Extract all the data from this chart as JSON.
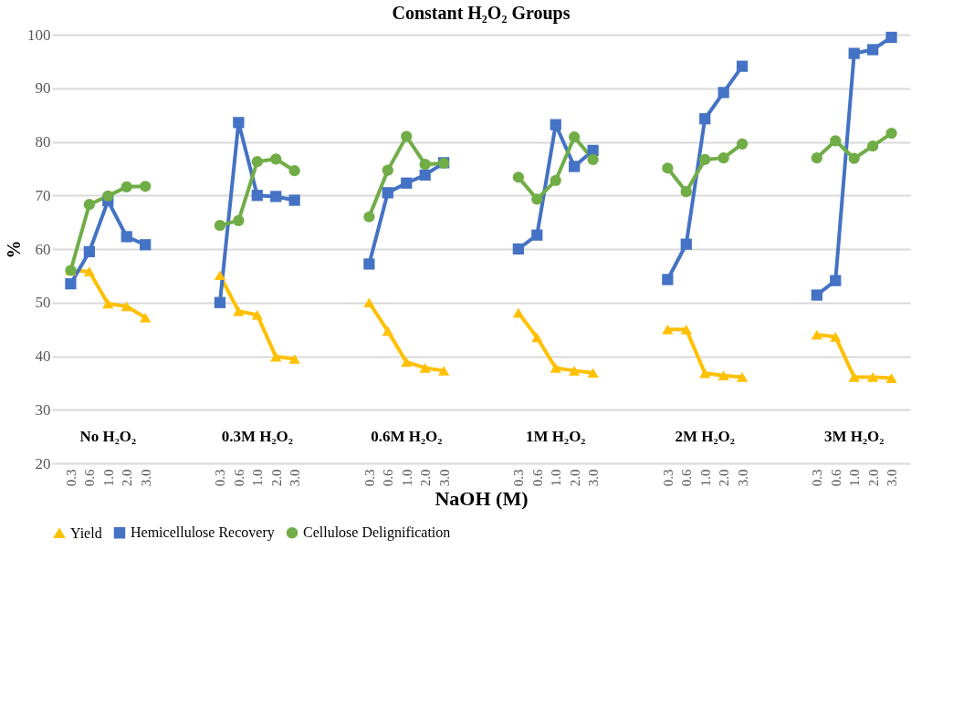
{
  "chart_data": {
    "type": "line",
    "title": "Constant H₂O₂ Groups",
    "xlabel": "NaOH (M)",
    "ylabel": "%",
    "categories": [
      "0.3",
      "0.6",
      "1.0",
      "2.0",
      "3.0",
      null,
      null,
      null,
      "0.3",
      "0.6",
      "1.0",
      "2.0",
      "3.0",
      null,
      null,
      null,
      "0.3",
      "0.6",
      "1.0",
      "2.0",
      "3.0",
      null,
      null,
      null,
      "0.3",
      "0.6",
      "1.0",
      "2.0",
      "3.0",
      null,
      null,
      null,
      "0.3",
      "0.6",
      "1.0",
      "2.0",
      "3.0",
      null,
      null,
      null,
      "0.3",
      "0.6",
      "1.0",
      "2.0",
      "3.0"
    ],
    "series": [
      {
        "name": "Yield",
        "color": "#ffc000",
        "marker": "triangle",
        "values": [
          56,
          55.8,
          49.8,
          49.3,
          47.2,
          null,
          null,
          null,
          55.1,
          48.4,
          47.7,
          39.9,
          39.5,
          null,
          null,
          null,
          50,
          44.7,
          38.9,
          37.8,
          37.3,
          null,
          null,
          null,
          48.1,
          43.5,
          37.8,
          37.3,
          36.9,
          null,
          null,
          null,
          45,
          45,
          36.8,
          36.4,
          36.1,
          null,
          null,
          null,
          44,
          43.6,
          36.1,
          36.1,
          35.9
        ]
      },
      {
        "name": "Hemicellulose Recovery",
        "color": "#4472c4",
        "marker": "square",
        "values": [
          53.5,
          59.5,
          69,
          62.3,
          60.8,
          null,
          null,
          null,
          50,
          83.6,
          70,
          69.8,
          69.1,
          null,
          null,
          null,
          57.2,
          70.5,
          72.3,
          73.8,
          76.1,
          null,
          null,
          null,
          60,
          62.6,
          83.2,
          75.4,
          78.4,
          null,
          null,
          null,
          54.3,
          60.9,
          84.3,
          89.2,
          94.1,
          null,
          null,
          null,
          51.4,
          54.1,
          96.5,
          97.2,
          99.5
        ]
      },
      {
        "name": "Cellulose Delignification",
        "color": "#70ad47",
        "marker": "circle",
        "values": [
          56,
          68.3,
          69.9,
          71.6,
          71.7,
          null,
          null,
          null,
          64.4,
          65.3,
          76.3,
          76.8,
          74.6,
          null,
          null,
          null,
          66,
          74.7,
          81,
          75.8,
          76,
          null,
          null,
          null,
          73.4,
          69.3,
          72.8,
          80.9,
          76.7,
          null,
          null,
          null,
          75.1,
          70.7,
          76.7,
          77,
          79.6,
          null,
          null,
          null,
          77,
          80.2,
          76.9,
          79.2,
          81.6
        ]
      }
    ],
    "annotations": [
      "No H₂O₂",
      "0.3M H₂O₂",
      "0.6M H₂O₂",
      "1M H₂O₂",
      "2M H₂O₂",
      "3M H₂O₂"
    ],
    "ylim": [
      20,
      100
    ],
    "yticks": [
      20,
      30,
      40,
      50,
      60,
      70,
      80,
      90,
      100
    ],
    "grid": "y",
    "legend": "bottom",
    "line_style": "solid"
  }
}
